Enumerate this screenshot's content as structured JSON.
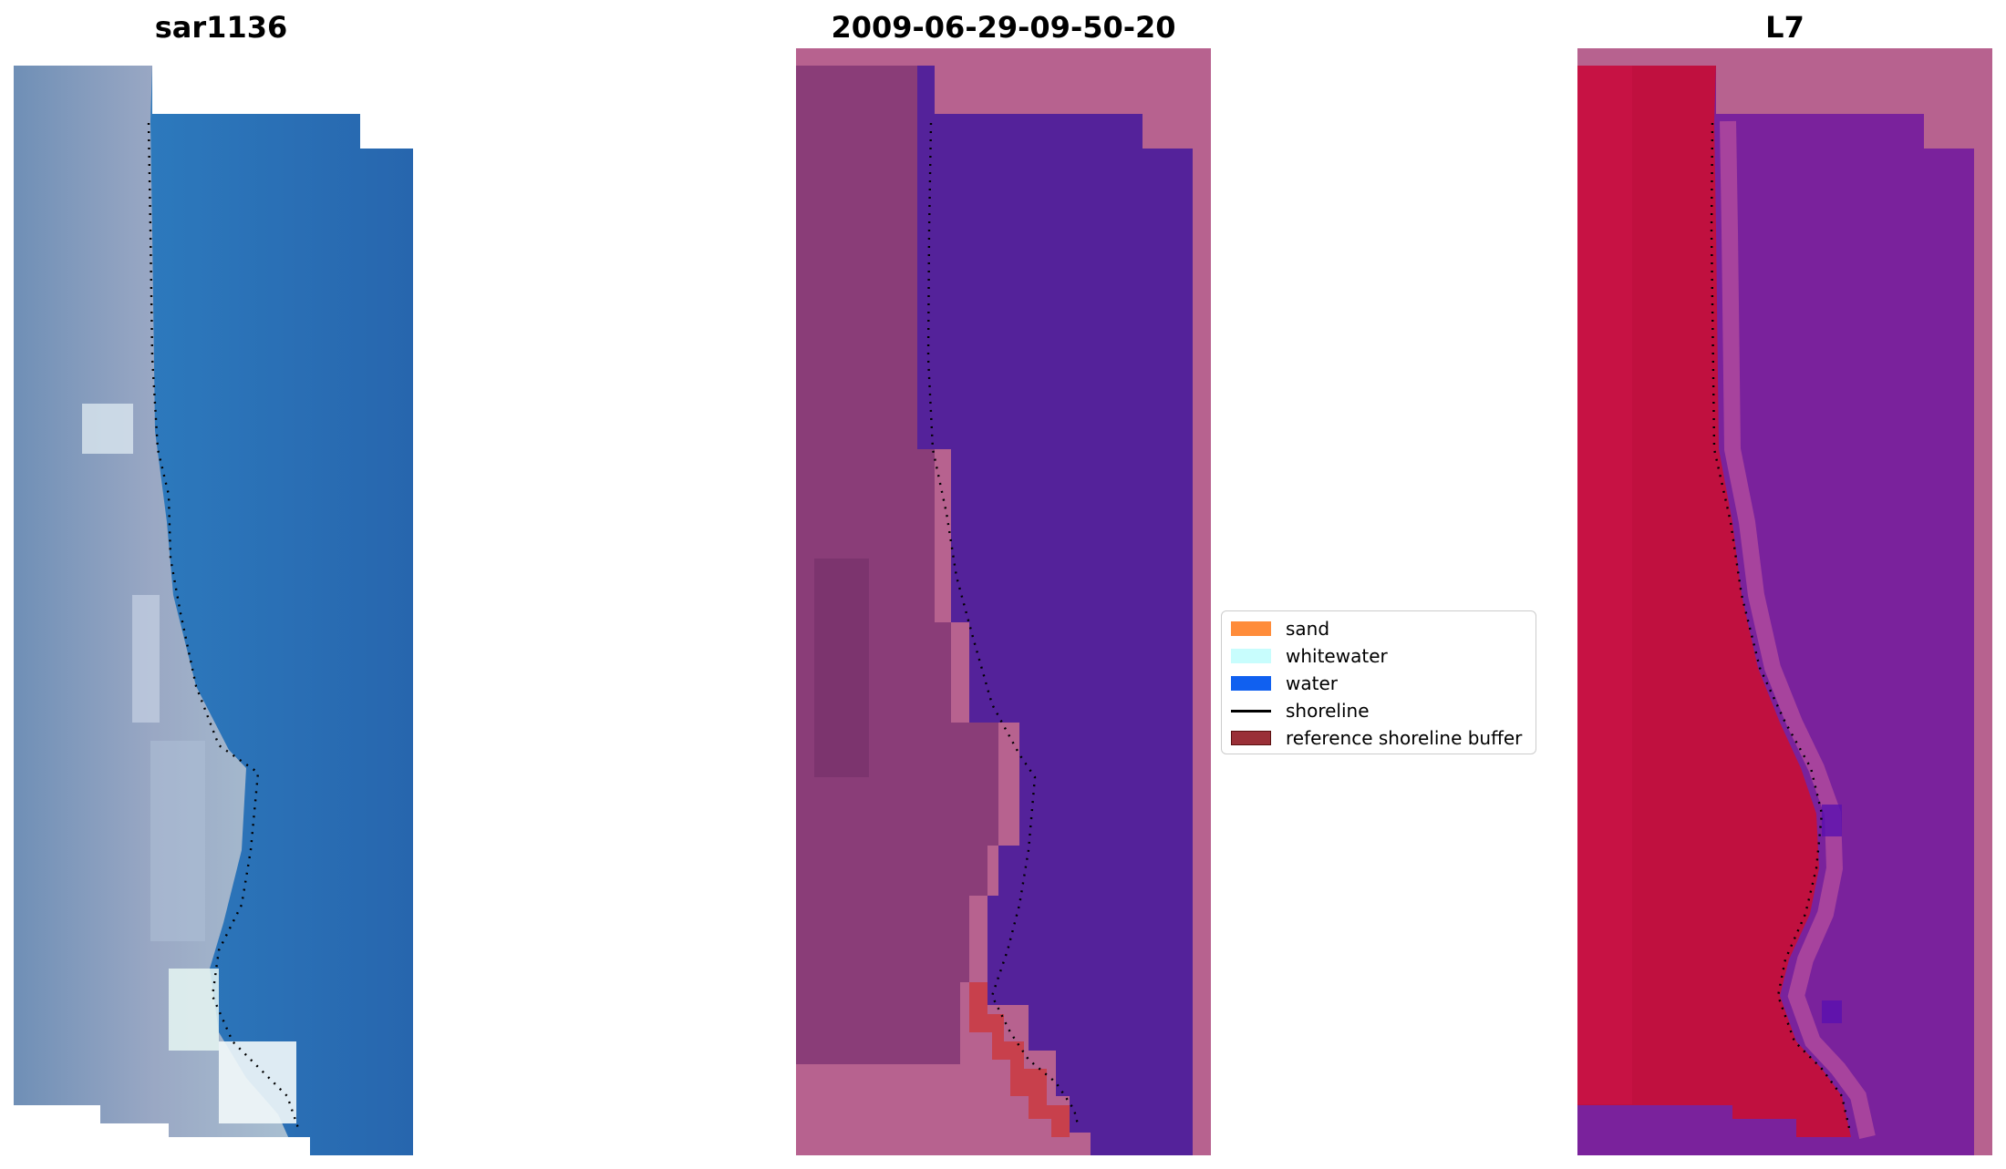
{
  "panels": [
    {
      "title": "sar1136"
    },
    {
      "title": "2009-06-29-09-50-20"
    },
    {
      "title": "L7"
    }
  ],
  "legend": {
    "items": [
      {
        "label": "sand",
        "color": "#ff8c3a",
        "type": "patch"
      },
      {
        "label": "whitewater",
        "color": "#c8fdfd",
        "type": "patch"
      },
      {
        "label": "water",
        "color": "#1060f0",
        "type": "patch"
      },
      {
        "label": "shoreline",
        "color": "#000000",
        "type": "line"
      },
      {
        "label": "reference shoreline buffer",
        "color": "#9a2f37",
        "type": "patch"
      }
    ]
  },
  "colors": {
    "rgb_water": "#2a72b8",
    "rgb_land": "#8aa0c0",
    "rgb_foam": "#e8f4f6",
    "cls_background": "#b7628f",
    "cls_land": "#8a3d78",
    "cls_water": "#54229a",
    "cls_buffer": "#c8404c",
    "idx_background": "#b7628f",
    "idx_land": "#c0103f",
    "idx_water": "#7a229c",
    "shoreline_dots": "#000000"
  }
}
